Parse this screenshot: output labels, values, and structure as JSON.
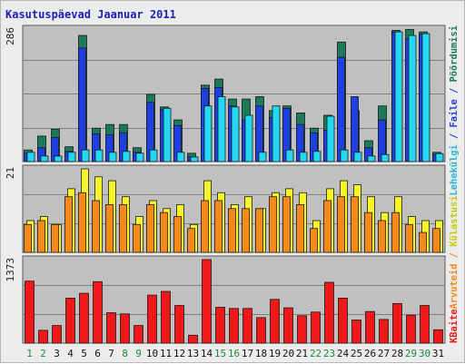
{
  "title": "Kasutuspäevad Jaanuar 2011",
  "colors": {
    "background": "#ececec",
    "panel": "#c0c0c0",
    "grid": "#7f7f7f",
    "title": "#1d1db8",
    "weekend_tick": "#1b8a3e",
    "weekday_tick": "#111111",
    "pageviews": "#1a7a5a",
    "files": "#1f3fe0",
    "hits": "#22d8f2",
    "visits": "#f5f52a",
    "sites": "#f58a1a",
    "kbytes": "#f01818"
  },
  "right_labels": [
    {
      "text": "Pöördumisi",
      "color": "#1a7a5a"
    },
    {
      "text": " / ",
      "color": "#1f3fe0"
    },
    {
      "text": "Faile",
      "color": "#1f3fe0"
    },
    {
      "text": " / ",
      "color": "#1f3fe0"
    },
    {
      "text": "Lehekülgi",
      "color": "#22b8d8"
    },
    {
      "text": "Külastusi",
      "color": "#c8c800"
    },
    {
      "text": " / ",
      "color": "#f58a1a"
    },
    {
      "text": "Arvuteid",
      "color": "#f58a1a"
    },
    {
      "text": "KBaite",
      "color": "#f01818"
    }
  ],
  "chart_data": [
    {
      "type": "bar",
      "ymax_label": "286",
      "ylim": [
        0,
        286
      ],
      "grid": true,
      "categories": [
        "1",
        "2",
        "3",
        "4",
        "5",
        "6",
        "7",
        "8",
        "9",
        "10",
        "11",
        "12",
        "13",
        "14",
        "15",
        "16",
        "17",
        "18",
        "19",
        "20",
        "21",
        "22",
        "23",
        "24",
        "25",
        "26",
        "27",
        "28",
        "29",
        "30",
        "31"
      ],
      "weekend_days": [
        "1",
        "2",
        "8",
        "9",
        "15",
        "16",
        "22",
        "23",
        "29",
        "30"
      ],
      "series": [
        {
          "name": "Pöördumisi",
          "values": [
            25,
            55,
            70,
            32,
            272,
            72,
            80,
            80,
            30,
            145,
            118,
            90,
            18,
            165,
            178,
            135,
            135,
            140,
            110,
            120,
            105,
            72,
            100,
            258,
            110,
            45,
            120,
            283,
            285,
            280,
            20
          ]
        },
        {
          "name": "Faile",
          "values": [
            18,
            30,
            52,
            22,
            245,
            60,
            58,
            62,
            20,
            128,
            112,
            78,
            10,
            158,
            160,
            120,
            90,
            120,
            95,
            115,
            80,
            62,
            68,
            225,
            140,
            30,
            90,
            280,
            265,
            275,
            15
          ]
        },
        {
          "name": "Lehekülgi",
          "values": [
            20,
            12,
            12,
            20,
            25,
            25,
            20,
            22,
            18,
            25,
            115,
            20,
            10,
            120,
            140,
            118,
            100,
            20,
            120,
            25,
            20,
            22,
            98,
            25,
            20,
            12,
            15,
            280,
            272,
            276,
            17
          ]
        }
      ]
    },
    {
      "type": "bar",
      "ymax_label": "21",
      "ylim": [
        0,
        21
      ],
      "grid": true,
      "categories": [
        "1",
        "2",
        "3",
        "4",
        "5",
        "6",
        "7",
        "8",
        "9",
        "10",
        "11",
        "12",
        "13",
        "14",
        "15",
        "16",
        "17",
        "18",
        "19",
        "20",
        "21",
        "22",
        "23",
        "24",
        "25",
        "26",
        "27",
        "28",
        "29",
        "30",
        "31"
      ],
      "series": [
        {
          "name": "Külastusi",
          "values": [
            8,
            9,
            7,
            16,
            21,
            19,
            18,
            14,
            9,
            13,
            11,
            12,
            7,
            18,
            15,
            12,
            14,
            11,
            15,
            16,
            15,
            8,
            16,
            18,
            17,
            14,
            10,
            14,
            9,
            8,
            8
          ]
        },
        {
          "name": "Arvuteid",
          "values": [
            7,
            8,
            7,
            14,
            15,
            13,
            12,
            12,
            7,
            12,
            10,
            9,
            6,
            13,
            13,
            11,
            11,
            11,
            14,
            14,
            12,
            6,
            13,
            14,
            14,
            10,
            8,
            10,
            7,
            5,
            6
          ]
        }
      ]
    },
    {
      "type": "bar",
      "ymax_label": "1373",
      "ylim": [
        0,
        1373
      ],
      "grid": true,
      "categories": [
        "1",
        "2",
        "3",
        "4",
        "5",
        "6",
        "7",
        "8",
        "9",
        "10",
        "11",
        "12",
        "13",
        "14",
        "15",
        "16",
        "17",
        "18",
        "19",
        "20",
        "21",
        "22",
        "23",
        "24",
        "25",
        "26",
        "27",
        "28",
        "29",
        "30",
        "31"
      ],
      "series": [
        {
          "name": "KBaite",
          "values": [
            1020,
            210,
            290,
            740,
            820,
            1010,
            500,
            480,
            290,
            790,
            850,
            620,
            130,
            1373,
            590,
            570,
            570,
            420,
            720,
            580,
            450,
            510,
            1000,
            740,
            380,
            520,
            390,
            650,
            460,
            620,
            220
          ]
        }
      ]
    }
  ]
}
